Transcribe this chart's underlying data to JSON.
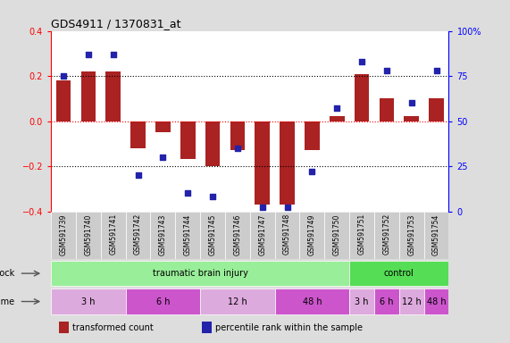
{
  "title": "GDS4911 / 1370831_at",
  "samples": [
    "GSM591739",
    "GSM591740",
    "GSM591741",
    "GSM591742",
    "GSM591743",
    "GSM591744",
    "GSM591745",
    "GSM591746",
    "GSM591747",
    "GSM591748",
    "GSM591749",
    "GSM591750",
    "GSM591751",
    "GSM591752",
    "GSM591753",
    "GSM591754"
  ],
  "transformed_count": [
    0.18,
    0.22,
    0.22,
    -0.12,
    -0.05,
    -0.17,
    -0.2,
    -0.13,
    -0.37,
    -0.37,
    -0.13,
    0.02,
    0.21,
    0.1,
    0.02,
    0.1
  ],
  "percentile_rank": [
    75,
    87,
    87,
    20,
    30,
    10,
    8,
    35,
    2,
    2,
    22,
    57,
    83,
    78,
    60,
    78
  ],
  "ylim_left": [
    -0.4,
    0.4
  ],
  "ylim_right": [
    0,
    100
  ],
  "yticks_left": [
    -0.4,
    -0.2,
    0.0,
    0.2,
    0.4
  ],
  "yticks_right": [
    0,
    25,
    50,
    75,
    100
  ],
  "ytick_labels_right": [
    "0",
    "25",
    "50",
    "75",
    "100%"
  ],
  "bar_color": "#aa2222",
  "dot_color": "#2222aa",
  "bar_width": 0.6,
  "shock_groups": [
    {
      "label": "traumatic brain injury",
      "start": 0,
      "end": 12,
      "color": "#99ee99"
    },
    {
      "label": "control",
      "start": 12,
      "end": 16,
      "color": "#55dd55"
    }
  ],
  "time_groups": [
    {
      "label": "3 h",
      "start": 0,
      "end": 3,
      "color": "#ddaadd"
    },
    {
      "label": "6 h",
      "start": 3,
      "end": 6,
      "color": "#cc55cc"
    },
    {
      "label": "12 h",
      "start": 6,
      "end": 9,
      "color": "#ddaadd"
    },
    {
      "label": "48 h",
      "start": 9,
      "end": 12,
      "color": "#cc55cc"
    },
    {
      "label": "3 h",
      "start": 12,
      "end": 13,
      "color": "#ddaadd"
    },
    {
      "label": "6 h",
      "start": 13,
      "end": 14,
      "color": "#cc55cc"
    },
    {
      "label": "12 h",
      "start": 14,
      "end": 15,
      "color": "#ddaadd"
    },
    {
      "label": "48 h",
      "start": 15,
      "end": 16,
      "color": "#cc55cc"
    }
  ],
  "legend_items": [
    {
      "label": "transformed count",
      "color": "#aa2222"
    },
    {
      "label": "percentile rank within the sample",
      "color": "#2222aa"
    }
  ],
  "bg_color": "#dddddd",
  "plot_bg": "#ffffff",
  "sample_box_color": "#cccccc",
  "n_samples": 16
}
